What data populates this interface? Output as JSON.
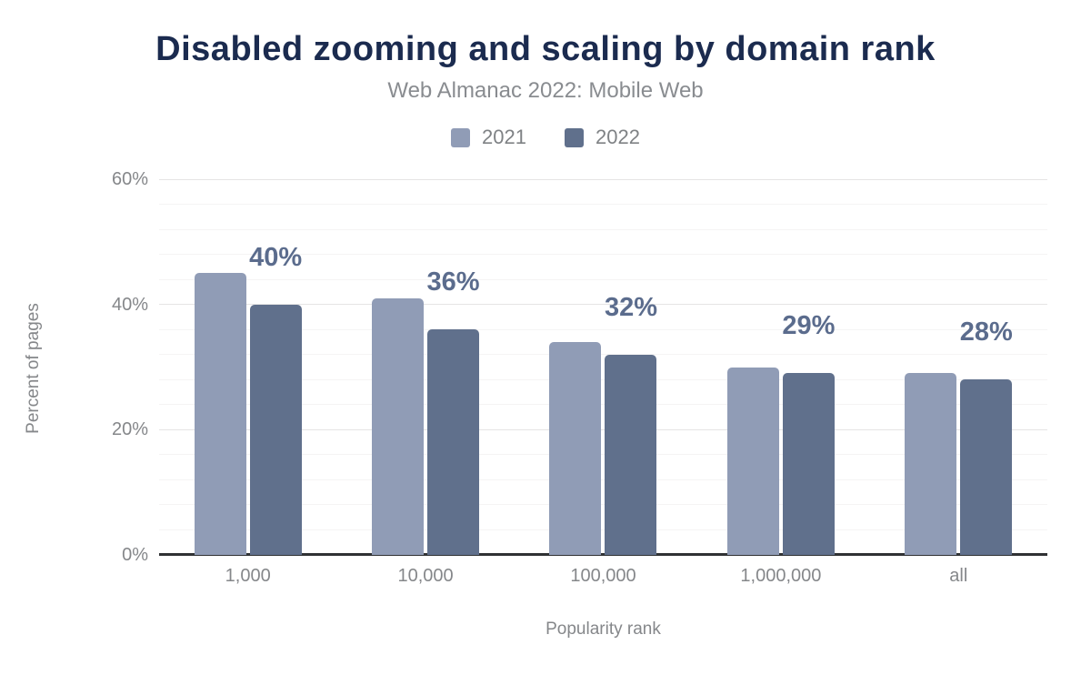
{
  "chart_data": {
    "type": "bar",
    "title": "Disabled zooming and scaling by domain rank",
    "subtitle": "Web Almanac 2022: Mobile Web",
    "xlabel": "Popularity rank",
    "ylabel": "Percent of pages",
    "categories": [
      "1,000",
      "10,000",
      "100,000",
      "1,000,000",
      "all"
    ],
    "series": [
      {
        "name": "2021",
        "color": "#909cb6",
        "values": [
          45,
          41,
          34,
          30,
          29
        ],
        "labels": [
          "",
          "",
          "",
          "",
          ""
        ]
      },
      {
        "name": "2022",
        "color": "#60708c",
        "values": [
          40,
          36,
          32,
          29,
          28
        ],
        "labels": [
          "40%",
          "36%",
          "32%",
          "29%",
          "28%"
        ]
      }
    ],
    "ylim": [
      0,
      60
    ],
    "yticks": [
      {
        "value": 0,
        "label": "0%"
      },
      {
        "value": 20,
        "label": "20%"
      },
      {
        "value": 40,
        "label": "40%"
      },
      {
        "value": 60,
        "label": "60%"
      }
    ],
    "minor_grid_step": 4,
    "grid": "on",
    "legend_position": "top",
    "data_label_color": "#5b6c8d",
    "axis_line_color": "#2f3133",
    "title_color": "#1b2b4f",
    "text_color": "#85878a"
  }
}
